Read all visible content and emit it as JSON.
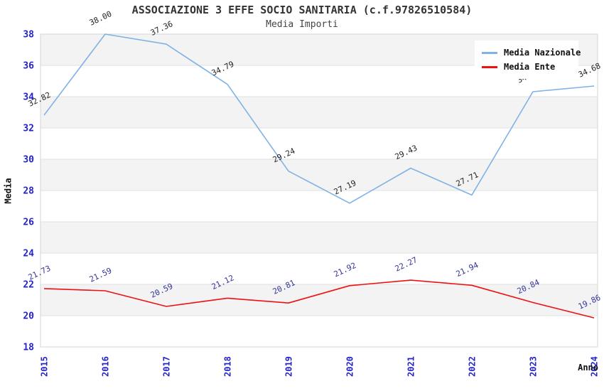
{
  "chart_data": {
    "type": "line",
    "title": "ASSOCIAZIONE 3 EFFE SOCIO SANITARIA (c.f.97826510584)",
    "subtitle": "Media Importi",
    "xlabel": "Anno",
    "ylabel": "Media",
    "categories": [
      "2015",
      "2016",
      "2017",
      "2018",
      "2019",
      "2020",
      "2021",
      "2022",
      "2023",
      "2024"
    ],
    "series": [
      {
        "name": "Media Nazionale",
        "color": "#7fb2e5",
        "label_color": "#222222",
        "values": [
          32.82,
          38.0,
          37.36,
          34.79,
          29.24,
          27.19,
          29.43,
          27.71,
          34.32,
          34.68
        ]
      },
      {
        "name": "Media Ente",
        "color": "#ee1111",
        "label_color": "#333399",
        "values": [
          21.73,
          21.59,
          20.59,
          21.12,
          20.81,
          21.92,
          22.27,
          21.94,
          20.84,
          19.86
        ]
      }
    ],
    "ylim": [
      18,
      38
    ],
    "ytick_step": 2,
    "yticks": [
      "18",
      "20",
      "22",
      "24",
      "26",
      "28",
      "30",
      "32",
      "34",
      "36",
      "38"
    ],
    "legend_position": "top-right",
    "grid": "horizontal-bands",
    "colors": {
      "tick_label": "#2323cc",
      "band_gray": "#f3f3f3",
      "gridline": "#e0e0e0",
      "plot_border": "#d6d6d6",
      "title_text": "#333333",
      "subtitle_text": "#444444"
    }
  }
}
